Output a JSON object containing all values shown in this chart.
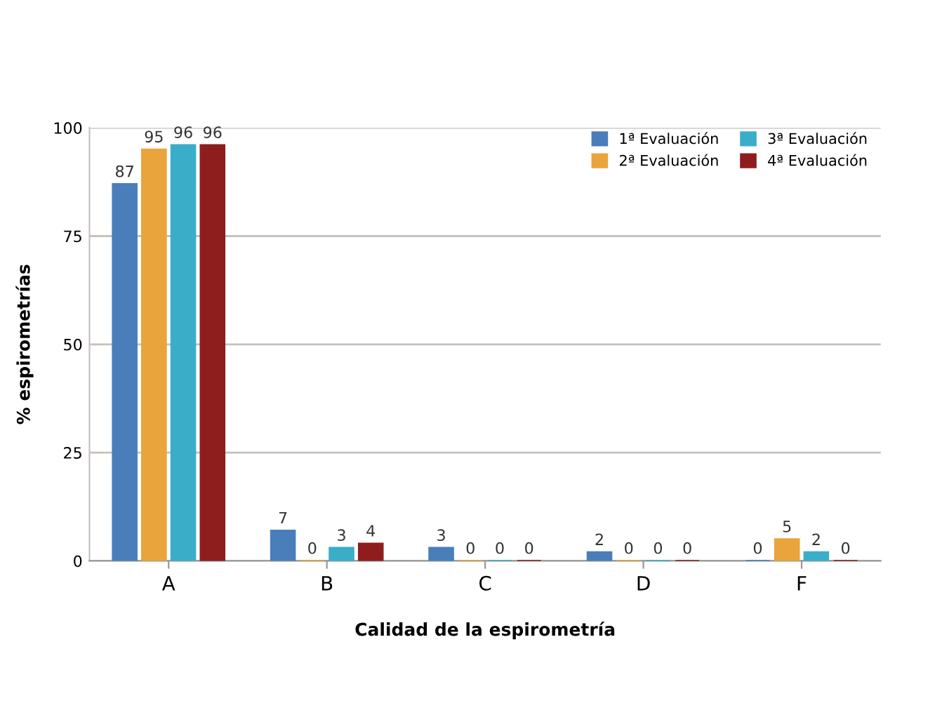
{
  "chart_data": {
    "type": "bar",
    "xlabel": "Calidad de la espirometría",
    "ylabel": "% espirometrías",
    "categories": [
      "A",
      "B",
      "C",
      "D",
      "F"
    ],
    "series": [
      {
        "name": "1ª Evaluación",
        "color": "#4a7ebb",
        "values": [
          87,
          7,
          3,
          2,
          0
        ]
      },
      {
        "name": "2ª Evaluación",
        "color": "#e9a43b",
        "values": [
          95,
          0,
          0,
          0,
          5
        ]
      },
      {
        "name": "3ª Evaluación",
        "color": "#3aaec8",
        "values": [
          96,
          3,
          0,
          0,
          2
        ]
      },
      {
        "name": "4ª Evaluación",
        "color": "#8e1e1e",
        "values": [
          96,
          4,
          0,
          0,
          0
        ]
      }
    ],
    "ylim": [
      0,
      100
    ],
    "yticks": [
      0,
      25,
      50,
      75,
      100
    ],
    "grid": "y",
    "legend": "top right",
    "data_labels": true
  }
}
